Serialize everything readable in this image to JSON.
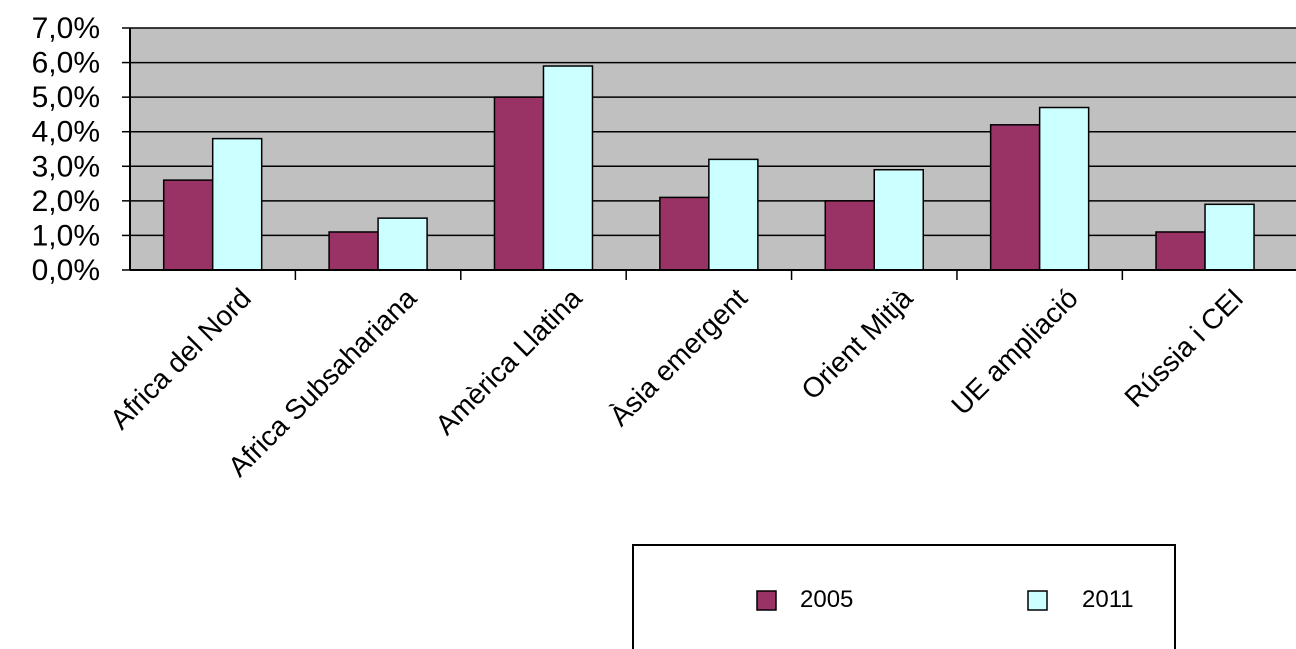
{
  "chart_data": {
    "type": "bar",
    "categories": [
      "Africa del Nord",
      "Africa Subsahariana",
      "Amèrica Llatina",
      "Àsia emergent",
      "Orient Mitjà",
      "UE ampliació",
      "Rússia i CEI"
    ],
    "series": [
      {
        "name": "2005",
        "values": [
          2.6,
          1.1,
          5.0,
          2.1,
          2.0,
          4.2,
          1.1
        ],
        "color": "#993366"
      },
      {
        "name": "2011",
        "values": [
          3.8,
          1.5,
          5.9,
          3.2,
          2.9,
          4.7,
          1.9
        ],
        "color": "#ccffff"
      }
    ],
    "ylim": [
      0,
      7
    ],
    "yticks": [
      "0,0%",
      "1,0%",
      "2,0%",
      "3,0%",
      "4,0%",
      "5,0%",
      "6,0%",
      "7,0%"
    ],
    "plot_background": "#c0c0c0",
    "grid": true,
    "legend_position": "bottom-right"
  }
}
